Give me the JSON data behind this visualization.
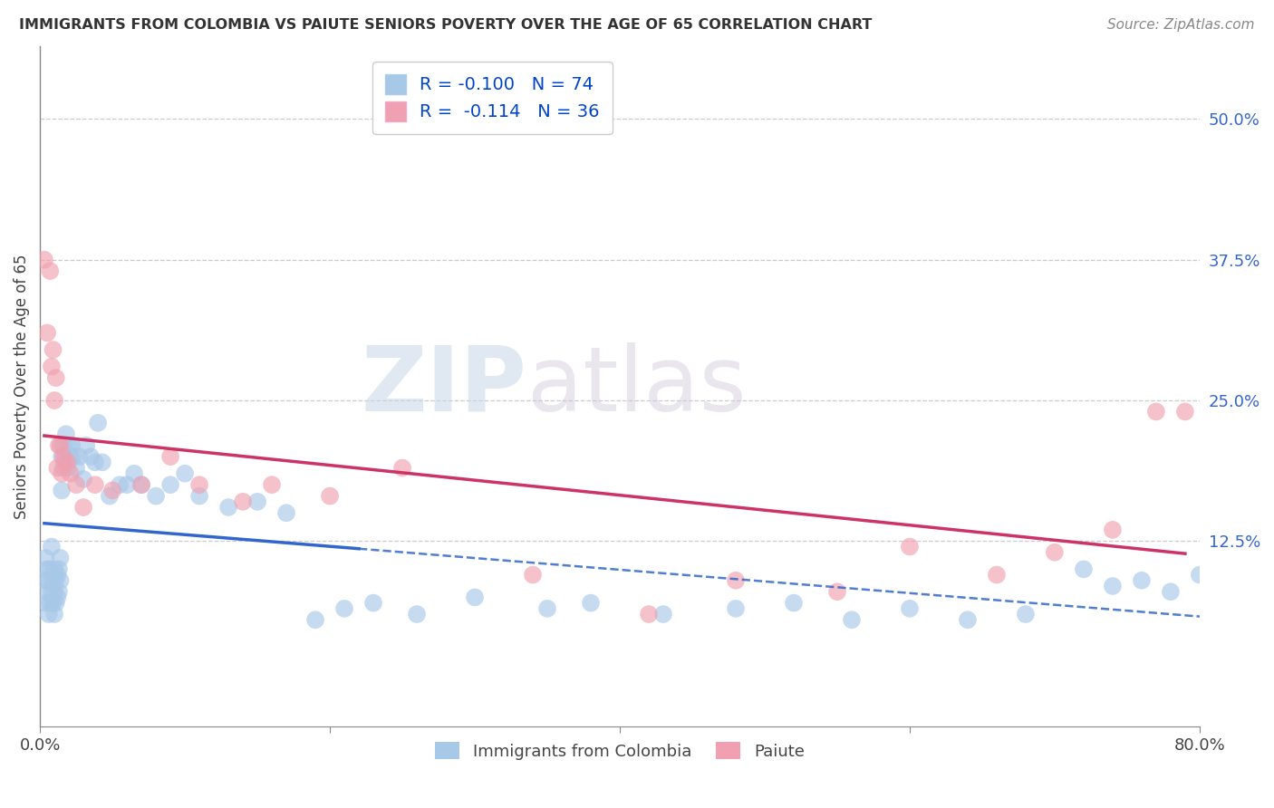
{
  "title": "IMMIGRANTS FROM COLOMBIA VS PAIUTE SENIORS POVERTY OVER THE AGE OF 65 CORRELATION CHART",
  "source": "Source: ZipAtlas.com",
  "ylabel": "Seniors Poverty Over the Age of 65",
  "xlim": [
    0.0,
    0.8
  ],
  "ylim": [
    -0.04,
    0.565
  ],
  "ytick_labels_right": [
    "12.5%",
    "25.0%",
    "37.5%",
    "50.0%"
  ],
  "ytick_vals_right": [
    0.125,
    0.25,
    0.375,
    0.5
  ],
  "series1_color": "#a8c8e8",
  "series2_color": "#f0a0b0",
  "series1_label": "Immigrants from Colombia",
  "series2_label": "Paiute",
  "series1_R": "-0.100",
  "series1_N": "74",
  "series2_R": "-0.114",
  "series2_N": "36",
  "trend1_solid_color": "#3366cc",
  "trend2_solid_color": "#cc3366",
  "watermark_zip": "ZIP",
  "watermark_atlas": "atlas",
  "blue_points_x": [
    0.003,
    0.004,
    0.004,
    0.005,
    0.005,
    0.006,
    0.006,
    0.007,
    0.007,
    0.008,
    0.008,
    0.009,
    0.009,
    0.01,
    0.01,
    0.01,
    0.011,
    0.011,
    0.012,
    0.012,
    0.013,
    0.013,
    0.014,
    0.014,
    0.015,
    0.015,
    0.016,
    0.016,
    0.017,
    0.018,
    0.019,
    0.02,
    0.021,
    0.022,
    0.023,
    0.025,
    0.027,
    0.03,
    0.032,
    0.035,
    0.038,
    0.04,
    0.043,
    0.048,
    0.055,
    0.06,
    0.065,
    0.07,
    0.08,
    0.09,
    0.1,
    0.11,
    0.13,
    0.15,
    0.17,
    0.19,
    0.21,
    0.23,
    0.26,
    0.3,
    0.35,
    0.38,
    0.43,
    0.48,
    0.52,
    0.56,
    0.6,
    0.64,
    0.68,
    0.72,
    0.74,
    0.76,
    0.78,
    0.8
  ],
  "blue_points_y": [
    0.09,
    0.07,
    0.11,
    0.08,
    0.1,
    0.06,
    0.09,
    0.07,
    0.1,
    0.08,
    0.12,
    0.07,
    0.09,
    0.06,
    0.08,
    0.1,
    0.07,
    0.09,
    0.075,
    0.095,
    0.08,
    0.1,
    0.09,
    0.11,
    0.17,
    0.2,
    0.19,
    0.21,
    0.2,
    0.22,
    0.19,
    0.21,
    0.2,
    0.21,
    0.2,
    0.19,
    0.2,
    0.18,
    0.21,
    0.2,
    0.195,
    0.23,
    0.195,
    0.165,
    0.175,
    0.175,
    0.185,
    0.175,
    0.165,
    0.175,
    0.185,
    0.165,
    0.155,
    0.16,
    0.15,
    0.055,
    0.065,
    0.07,
    0.06,
    0.075,
    0.065,
    0.07,
    0.06,
    0.065,
    0.07,
    0.055,
    0.065,
    0.055,
    0.06,
    0.1,
    0.085,
    0.09,
    0.08,
    0.095
  ],
  "pink_points_x": [
    0.003,
    0.005,
    0.007,
    0.008,
    0.009,
    0.01,
    0.011,
    0.012,
    0.013,
    0.014,
    0.015,
    0.016,
    0.017,
    0.019,
    0.021,
    0.025,
    0.03,
    0.038,
    0.05,
    0.07,
    0.09,
    0.11,
    0.14,
    0.16,
    0.2,
    0.25,
    0.34,
    0.42,
    0.48,
    0.55,
    0.6,
    0.66,
    0.7,
    0.74,
    0.77,
    0.79
  ],
  "pink_points_y": [
    0.375,
    0.31,
    0.365,
    0.28,
    0.295,
    0.25,
    0.27,
    0.19,
    0.21,
    0.21,
    0.185,
    0.2,
    0.195,
    0.195,
    0.185,
    0.175,
    0.155,
    0.175,
    0.17,
    0.175,
    0.2,
    0.175,
    0.16,
    0.175,
    0.165,
    0.19,
    0.095,
    0.06,
    0.09,
    0.08,
    0.12,
    0.095,
    0.115,
    0.135,
    0.24,
    0.24
  ]
}
